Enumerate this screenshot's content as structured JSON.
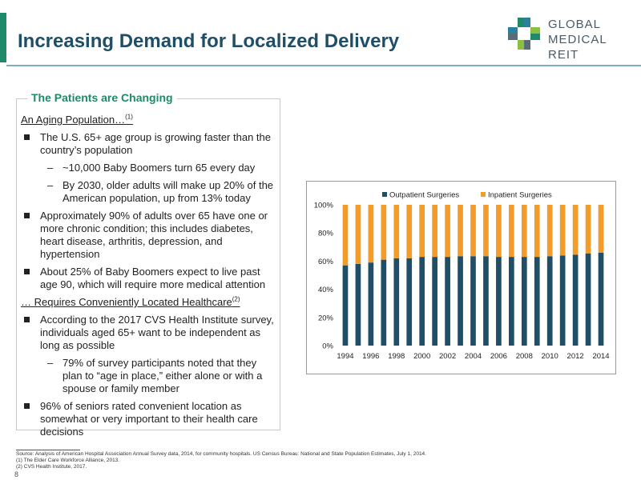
{
  "slide": {
    "title": "Increasing Demand for Localized Delivery",
    "page_number": "8"
  },
  "logo": {
    "line1": "GLOBAL",
    "line2": "MEDICAL REIT",
    "colors": [
      "#1f8a6a",
      "#2b7fa0",
      "#8bbf3f",
      "#5a6b78"
    ]
  },
  "panel": {
    "title": "The Patients are Changing",
    "section1": {
      "label": "An Aging Population…",
      "sup": "(1)"
    },
    "bullet1": "The U.S. 65+ age group is growing faster than the country’s population",
    "bullet1_sub1": "~10,000 Baby Boomers turn 65 every day",
    "bullet1_sub2": "By 2030, older adults will make up 20% of the American population, up from 13% today",
    "bullet2": "Approximately 90% of adults over 65 have one or more chronic condition; this includes diabetes, heart disease, arthritis, depression, and hypertension",
    "bullet3": "About 25% of Baby Boomers expect to live past age 90, which will require more medical attention",
    "section2": {
      "label": "… Requires Conveniently Located Healthcare",
      "sup": "(2)"
    },
    "bullet4": "According to the 2017 CVS Health Institute survey, individuals aged 65+ want to be independent as long as possible",
    "bullet4_sub1": "79% of survey participants noted that they plan to “age in place,” either alone or with a spouse or family member",
    "bullet5": "96% of seniors rated convenient location as somewhat or very important to their health care decisions",
    "dash": "–"
  },
  "footnotes": {
    "source": "Source: Analysis of American Hospital Association Annual Survey data, 2014, for community hospitals. US Census Bureau: National and State Population Estimates, July 1, 2014.",
    "note1": "(1)    The Elder Care Workforce Alliance, 2013.",
    "note2": "(2)    CVS Health Institute, 2017."
  },
  "chart_data": {
    "type": "bar",
    "stacked": true,
    "percent_stacked": true,
    "categories": [
      "1994",
      "1995",
      "1996",
      "1997",
      "1998",
      "1999",
      "2000",
      "2001",
      "2002",
      "2003",
      "2004",
      "2005",
      "2006",
      "2007",
      "2008",
      "2009",
      "2010",
      "2011",
      "2012",
      "2013",
      "2014"
    ],
    "series": [
      {
        "name": "Outpatient Surgeries",
        "color": "#1f4e69",
        "values": [
          57,
          58,
          59,
          61,
          62,
          62,
          63,
          63,
          63,
          63.5,
          63.5,
          63.5,
          63,
          63,
          63,
          63,
          63.5,
          64,
          64.5,
          65.5,
          66
        ]
      },
      {
        "name": "Inpatient Surgeries",
        "color": "#f39c2a",
        "values": [
          43,
          42,
          41,
          39,
          38,
          38,
          37,
          37,
          37,
          36.5,
          36.5,
          36.5,
          37,
          37,
          37,
          37,
          36.5,
          36,
          35.5,
          34.5,
          34
        ]
      }
    ],
    "x_tick_labels": [
      "1994",
      "1996",
      "1998",
      "2000",
      "2002",
      "2004",
      "2006",
      "2008",
      "2010",
      "2012",
      "2014"
    ],
    "y_tick_labels": [
      "0%",
      "20%",
      "40%",
      "60%",
      "80%",
      "100%"
    ],
    "ylim": [
      0,
      100
    ],
    "legend_position": "top",
    "grid": false
  }
}
